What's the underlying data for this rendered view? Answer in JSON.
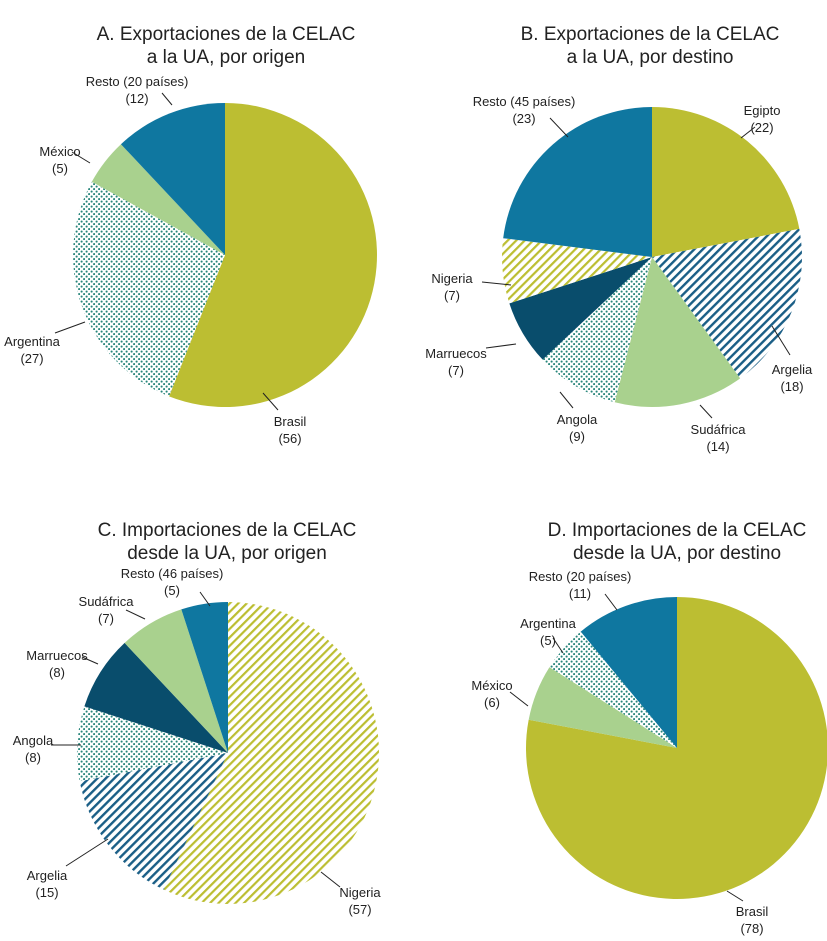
{
  "colors": {
    "olive": "#bcbe32",
    "light_green": "#a9d18e",
    "teal_blue": "#0f77a0",
    "dark_navy": "#094d6c",
    "dots_teal": "#27857a",
    "hatch_navy": "#1a5e86",
    "hatch_olive": "#bcbe32"
  },
  "chart_data": [
    {
      "type": "pie",
      "title": "A. Exportaciones de la CELAC\na la UA, por origen",
      "slices": [
        {
          "label": "Brasil",
          "value": 56,
          "value_label": "(56)",
          "fill": "olive"
        },
        {
          "label": "Argentina",
          "value": 27,
          "value_label": "(27)",
          "fill": "dots_teal"
        },
        {
          "label": "México",
          "value": 5,
          "value_label": "(5)",
          "fill": "light_green"
        },
        {
          "label": "Resto (20 países)",
          "value": 12,
          "value_label": "(12)",
          "fill": "teal_blue"
        }
      ]
    },
    {
      "type": "pie",
      "title": "B. Exportaciones de la CELAC\na la UA, por destino",
      "slices": [
        {
          "label": "Egipto",
          "value": 22,
          "value_label": "(22)",
          "fill": "olive"
        },
        {
          "label": "Argelia",
          "value": 18,
          "value_label": "(18)",
          "fill": "hatch_navy"
        },
        {
          "label": "Sudáfrica",
          "value": 14,
          "value_label": "(14)",
          "fill": "light_green"
        },
        {
          "label": "Angola",
          "value": 9,
          "value_label": "(9)",
          "fill": "dots_teal"
        },
        {
          "label": "Marruecos",
          "value": 7,
          "value_label": "(7)",
          "fill": "dark_navy"
        },
        {
          "label": "Nigeria",
          "value": 7,
          "value_label": "(7)",
          "fill": "hatch_olive"
        },
        {
          "label": "Resto (45 países)",
          "value": 23,
          "value_label": "(23)",
          "fill": "teal_blue"
        }
      ]
    },
    {
      "type": "pie",
      "title": "C. Importaciones de la CELAC\ndesde la UA, por origen",
      "slices": [
        {
          "label": "Nigeria",
          "value": 57,
          "value_label": "(57)",
          "fill": "hatch_olive"
        },
        {
          "label": "Argelia",
          "value": 15,
          "value_label": "(15)",
          "fill": "hatch_navy"
        },
        {
          "label": "Angola",
          "value": 8,
          "value_label": "(8)",
          "fill": "dots_teal"
        },
        {
          "label": "Marruecos",
          "value": 8,
          "value_label": "(8)",
          "fill": "dark_navy"
        },
        {
          "label": "Sudáfrica",
          "value": 7,
          "value_label": "(7)",
          "fill": "light_green"
        },
        {
          "label": "Resto (46 países)",
          "value": 5,
          "value_label": "(5)",
          "fill": "teal_blue"
        }
      ]
    },
    {
      "type": "pie",
      "title": "D. Importaciones de la CELAC\ndesde la UA, por destino",
      "slices": [
        {
          "label": "Brasil",
          "value": 78,
          "value_label": "(78)",
          "fill": "olive"
        },
        {
          "label": "México",
          "value": 6,
          "value_label": "(6)",
          "fill": "light_green"
        },
        {
          "label": "Argentina",
          "value": 5,
          "value_label": "(5)",
          "fill": "dots_teal"
        },
        {
          "label": "Resto (20 países)",
          "value": 11,
          "value_label": "(11)",
          "fill": "teal_blue"
        }
      ]
    }
  ]
}
